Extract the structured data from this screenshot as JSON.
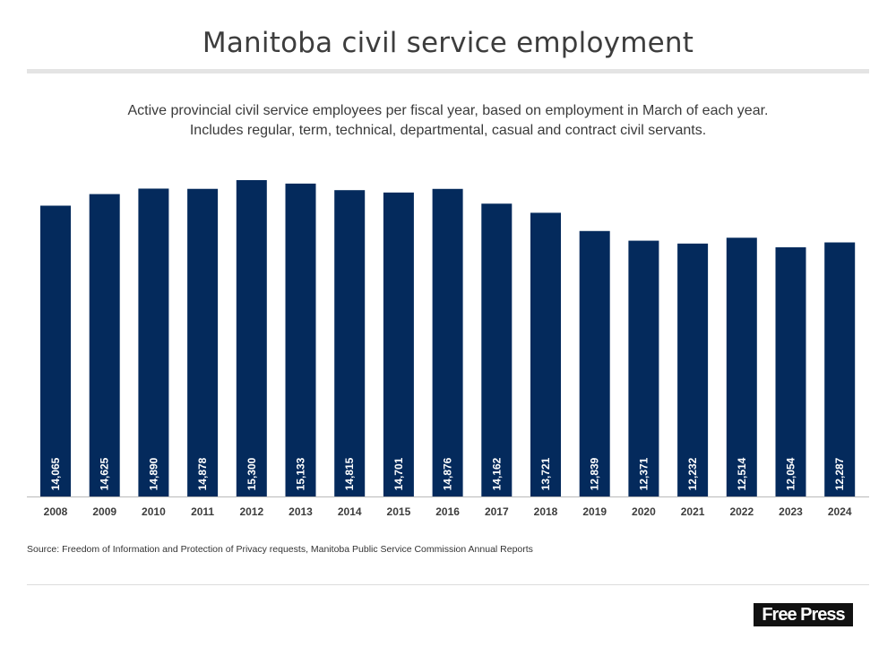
{
  "header": {
    "title": "Manitoba civil service employment",
    "subtitle_lines": [
      "Active provincial civil service employees per fiscal year, based on employment in March of each year.",
      "Includes regular, term, technical, departmental, casual and contract civil servants."
    ]
  },
  "footer": {
    "source": "Source: Freedom of Information and Protection of Privacy requests, Manitoba Public Service Commission Annual Reports",
    "logo_text": "Free Press"
  },
  "colors": {
    "bar": "#042a5c",
    "label": "#ffffff",
    "tick": "#3d3d3d",
    "axis": "#b9b9b9"
  },
  "chart_data": {
    "type": "bar",
    "title": "Manitoba civil service employment",
    "xlabel": "",
    "ylabel": "",
    "ylim": [
      0,
      15300
    ],
    "grid": false,
    "categories": [
      "2008",
      "2009",
      "2010",
      "2011",
      "2012",
      "2013",
      "2014",
      "2015",
      "2016",
      "2017",
      "2018",
      "2019",
      "2020",
      "2021",
      "2022",
      "2023",
      "2024"
    ],
    "values": [
      14065,
      14625,
      14890,
      14878,
      15300,
      15133,
      14815,
      14701,
      14876,
      14162,
      13721,
      12839,
      12371,
      12232,
      12514,
      12054,
      12287
    ],
    "data_labels": [
      "14,065",
      "14,625",
      "14,890",
      "14,878",
      "15,300",
      "15,133",
      "14,815",
      "14,701",
      "14,876",
      "14,162",
      "13,721",
      "12,839",
      "12,371",
      "12,232",
      "12,514",
      "12,054",
      "12,287"
    ]
  }
}
